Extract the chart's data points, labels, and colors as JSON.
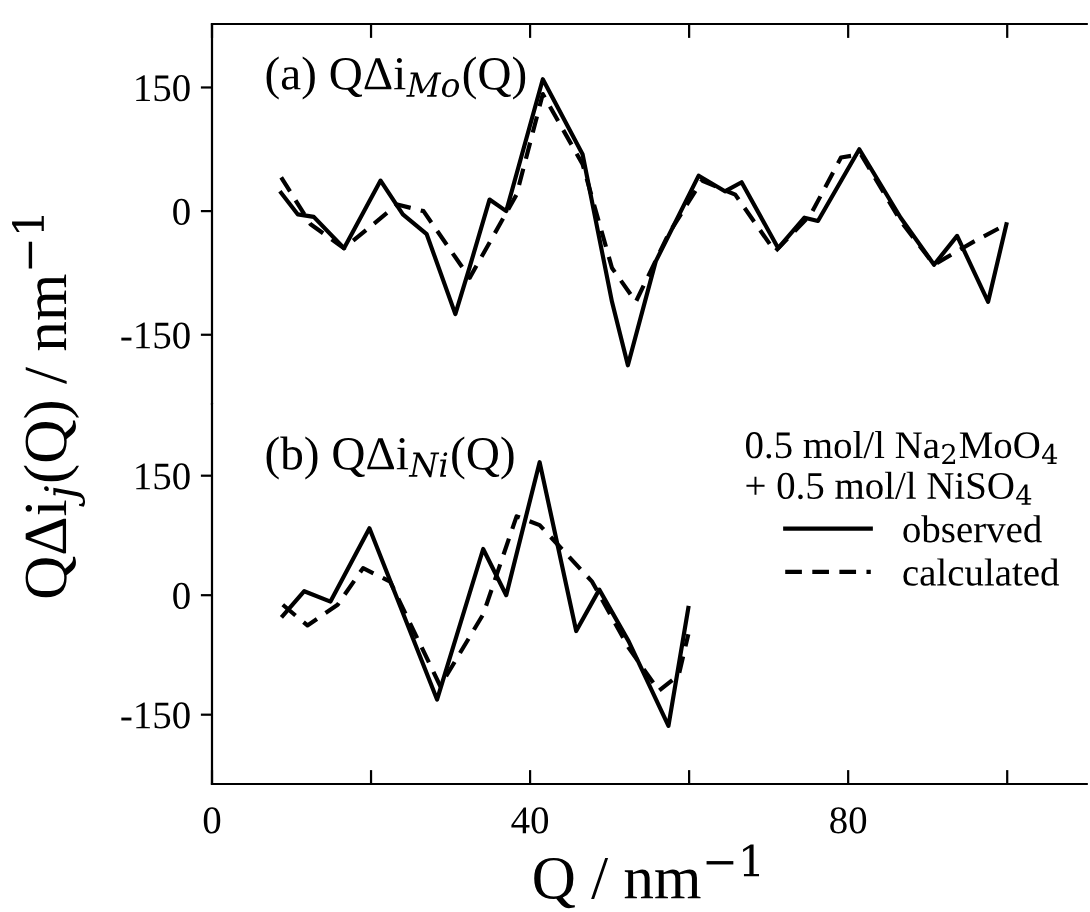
{
  "chart_data": [
    {
      "type": "line",
      "title": "(a) QΔi$_{Mo}$(Q)",
      "ylabel": "QΔi$_{j}$(Q) / nm$^{−1}$",
      "xlim": [
        0,
        110
      ],
      "xticks": [
        0,
        {
          "value": 20,
          "label": null
        },
        40,
        {
          "value": 60,
          "label": null
        },
        80,
        {
          "value": 100,
          "label": null
        }
      ],
      "ylim": [
        -234,
        227
      ],
      "yticks": [
        -150,
        0,
        150
      ],
      "tick_labels": "y",
      "legend": false,
      "series": [
        {
          "color": "#000000",
          "line_style": "solid",
          "x": [
            8.7,
            10.8,
            12.8,
            16.6,
            21.2,
            24,
            27,
            30.6,
            32.4,
            34.9,
            37,
            41.6,
            46.6,
            50.3,
            52.3,
            55.8,
            61.2,
            64.5,
            66.6,
            71.2,
            74.5,
            76.2,
            81.4,
            86.6,
            90.8,
            93.7,
            97.6,
            99.9
          ],
          "values": [
            22,
            -4,
            -7,
            -45,
            37,
            -4,
            -28,
            -125,
            -68,
            14,
            0,
            160,
            69,
            -110,
            -187,
            -61,
            43,
            24,
            35,
            -45,
            -8,
            -12,
            75,
            -8,
            -65,
            -30,
            -110,
            -16
          ]
        },
        {
          "color": "#000000",
          "line_style": "dashed",
          "x": [
            8.7,
            12.4,
            16.6,
            23.3,
            26.6,
            32.4,
            38.3,
            41.6,
            46.6,
            50.3,
            53.3,
            57.4,
            61.6,
            65.8,
            70.8,
            75.3,
            79.1,
            81.6,
            86.6,
            90.8,
            95.8,
            99.9
          ],
          "values": [
            41,
            -16,
            -45,
            8,
            0,
            -81,
            20,
            142,
            57,
            -69,
            -110,
            -28,
            37,
            20,
            -49,
            -4,
            65,
            69,
            -12,
            -65,
            -37,
            -16
          ]
        }
      ]
    },
    {
      "type": "line",
      "title": "(b) QΔi$_{Ni}$(Q)",
      "xlabel": "Q / nm$^{−1}$",
      "xlim": [
        0,
        110
      ],
      "xticks": [
        0,
        {
          "value": 20,
          "label": null
        },
        40,
        {
          "value": 60,
          "label": null
        },
        80,
        {
          "value": 100,
          "label": null
        }
      ],
      "ylim": [
        -237,
        240
      ],
      "yticks": [
        -150,
        0,
        150
      ],
      "legend": "top right",
      "legend_title": "0.5 mol/l Na$_{2}$MoO$_{4}$\n+ 0.5 mol/l NiSO$_{4}$",
      "series": [
        {
          "name": "observed",
          "color": "#000000",
          "line_style": "solid",
          "x": [
            8.9,
            11.6,
            14.9,
            19.8,
            28.3,
            34.1,
            37,
            41.2,
            45.8,
            48.7,
            52.4,
            57.4,
            59.9
          ],
          "values": [
            -26,
            5,
            -8,
            84,
            -131,
            58,
            0,
            167,
            -45,
            7,
            -58,
            -164,
            -16
          ]
        },
        {
          "name": "calculated",
          "color": "#000000",
          "line_style": "dashed",
          "x": [
            8.9,
            12,
            15.8,
            19,
            22.4,
            28.7,
            34.1,
            38.3,
            41.2,
            47.8,
            52.4,
            56.2,
            58.7,
            59.9
          ],
          "values": [
            -12,
            -38,
            -12,
            34,
            17,
            -114,
            -24,
            99,
            88,
            17,
            -66,
            -120,
            -100,
            -49
          ]
        }
      ]
    }
  ]
}
